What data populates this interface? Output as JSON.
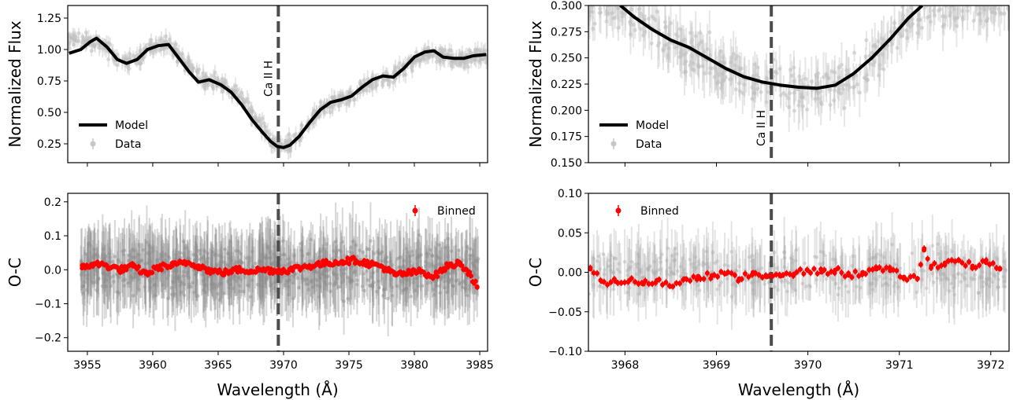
{
  "chart_data": [
    {
      "id": "top-left",
      "type": "line",
      "ylabel": "Normalized Flux",
      "xlim": [
        3953.5,
        3985.6
      ],
      "ylim": [
        0.1,
        1.35
      ],
      "xticks": [
        3955,
        3960,
        3965,
        3970,
        3975,
        3980,
        3985
      ],
      "yticks": [
        0.25,
        0.5,
        0.75,
        1.0,
        1.25
      ],
      "ytick_labels": [
        "0.25",
        "0.50",
        "0.75",
        "1.00",
        "1.25"
      ],
      "show_xtick_labels": false,
      "marker": {
        "x": 3969.6,
        "label": "Ca II H"
      },
      "legend": {
        "position": "lower-left",
        "entries": [
          {
            "label": "Model",
            "style": "line",
            "color": "#000000"
          },
          {
            "label": "Data",
            "style": "errorpoint",
            "color": "#c7c7c7"
          }
        ]
      },
      "series": [
        {
          "name": "Model",
          "color": "#000000",
          "x": [
            3953.6,
            3954.5,
            3955.2,
            3955.7,
            3956.5,
            3957.3,
            3958.0,
            3958.8,
            3959.6,
            3960.4,
            3961.2,
            3962.0,
            3962.8,
            3963.5,
            3964.3,
            3965.2,
            3966.0,
            3966.8,
            3967.6,
            3968.4,
            3969.0,
            3969.5,
            3970.0,
            3970.5,
            3971.2,
            3972.0,
            3972.8,
            3973.6,
            3974.4,
            3975.2,
            3976.0,
            3976.8,
            3977.6,
            3978.4,
            3979.2,
            3980.0,
            3980.8,
            3981.5,
            3982.2,
            3983.0,
            3983.8,
            3984.5,
            3985.5
          ],
          "y": [
            0.97,
            1.0,
            1.06,
            1.09,
            1.02,
            0.92,
            0.89,
            0.92,
            1.0,
            1.03,
            1.04,
            0.93,
            0.82,
            0.74,
            0.76,
            0.72,
            0.66,
            0.56,
            0.44,
            0.34,
            0.27,
            0.23,
            0.22,
            0.24,
            0.31,
            0.42,
            0.52,
            0.58,
            0.6,
            0.63,
            0.7,
            0.76,
            0.79,
            0.78,
            0.85,
            0.94,
            0.98,
            0.99,
            0.94,
            0.93,
            0.93,
            0.95,
            0.96
          ]
        },
        {
          "name": "Data",
          "color": "#c7c7c7",
          "x": [
            3955.0,
            3956.0,
            3957.0,
            3958.0,
            3959.0,
            3960.0,
            3961.0,
            3962.0,
            3963.0,
            3964.0,
            3965.0,
            3966.0,
            3967.0,
            3968.0,
            3969.0,
            3970.0,
            3971.0,
            3972.0,
            3973.0,
            3974.0,
            3975.0,
            3976.0,
            3977.0,
            3978.0,
            3979.0,
            3980.0,
            3981.0,
            3982.0,
            3983.0,
            3984.0,
            3985.0
          ],
          "y": [
            1.07,
            1.05,
            0.95,
            0.89,
            0.93,
            1.02,
            1.04,
            0.96,
            0.82,
            0.75,
            0.74,
            0.68,
            0.58,
            0.43,
            0.28,
            0.22,
            0.29,
            0.42,
            0.55,
            0.59,
            0.61,
            0.69,
            0.77,
            0.78,
            0.83,
            0.92,
            0.98,
            0.96,
            0.93,
            0.92,
            0.95
          ],
          "error": 0.06
        }
      ]
    },
    {
      "id": "top-right",
      "type": "line",
      "ylabel": "Normalized Flux",
      "xlim": [
        3967.6,
        3972.2
      ],
      "ylim": [
        0.15,
        0.3
      ],
      "xticks": [
        3968,
        3969,
        3970,
        3971,
        3972
      ],
      "yticks": [
        0.15,
        0.175,
        0.2,
        0.225,
        0.25,
        0.275,
        0.3
      ],
      "ytick_labels": [
        "0.150",
        "0.175",
        "0.200",
        "0.225",
        "0.250",
        "0.275",
        "0.300"
      ],
      "show_xtick_labels": false,
      "marker": {
        "x": 3969.6,
        "label": "Ca II H"
      },
      "legend": {
        "position": "lower-left",
        "entries": [
          {
            "label": "Model",
            "style": "line",
            "color": "#000000"
          },
          {
            "label": "Data",
            "style": "errorpoint",
            "color": "#c7c7c7"
          }
        ]
      },
      "series": [
        {
          "name": "Model",
          "color": "#000000",
          "x": [
            3967.95,
            3968.1,
            3968.3,
            3968.5,
            3968.7,
            3968.9,
            3969.1,
            3969.3,
            3969.5,
            3969.7,
            3969.9,
            3970.1,
            3970.3,
            3970.5,
            3970.7,
            3970.9,
            3971.1,
            3971.25
          ],
          "y": [
            0.3,
            0.289,
            0.277,
            0.267,
            0.26,
            0.25,
            0.24,
            0.232,
            0.227,
            0.224,
            0.222,
            0.221,
            0.224,
            0.235,
            0.25,
            0.268,
            0.288,
            0.3
          ]
        },
        {
          "name": "Data",
          "color": "#c7c7c7",
          "x": [
            3967.9,
            3968.1,
            3968.3,
            3968.5,
            3968.7,
            3968.9,
            3969.1,
            3969.3,
            3969.5,
            3969.7,
            3969.9,
            3970.1,
            3970.3,
            3970.5,
            3970.7,
            3970.9,
            3971.1,
            3971.3
          ],
          "y": [
            0.3,
            0.29,
            0.278,
            0.266,
            0.258,
            0.248,
            0.238,
            0.231,
            0.226,
            0.223,
            0.22,
            0.219,
            0.223,
            0.232,
            0.249,
            0.266,
            0.285,
            0.3
          ],
          "error": 0.02
        }
      ]
    },
    {
      "id": "bottom-left",
      "type": "scatter",
      "ylabel": "O-C",
      "xlabel": "Wavelength (Å)",
      "xlim": [
        3953.5,
        3985.6
      ],
      "ylim": [
        -0.24,
        0.225
      ],
      "xticks": [
        3955,
        3960,
        3965,
        3970,
        3975,
        3980,
        3985
      ],
      "yticks": [
        -0.2,
        -0.1,
        0.0,
        0.1,
        0.2
      ],
      "ytick_labels": [
        "−0.2",
        "−0.1",
        "0.0",
        "0.1",
        "0.2"
      ],
      "show_xtick_labels": true,
      "marker": {
        "x": 3969.6
      },
      "residual_band": {
        "x": [
          3954.5,
          3984.9
        ],
        "half_width": 0.08
      },
      "legend": {
        "position": "upper-right",
        "entries": [
          {
            "label": "Binned",
            "style": "errorpoint",
            "color": "#ff0000"
          }
        ]
      },
      "series": [
        {
          "name": "Binned",
          "color": "#ff0000",
          "x": [
            3954.6,
            3955.5,
            3956.5,
            3957.5,
            3958.5,
            3959.5,
            3960.5,
            3961.5,
            3962.5,
            3963.5,
            3964.5,
            3965.5,
            3966.5,
            3967.5,
            3968.5,
            3969.5,
            3970.5,
            3971.5,
            3972.5,
            3973.5,
            3974.5,
            3975.5,
            3976.5,
            3977.5,
            3978.5,
            3979.5,
            3980.5,
            3981.5,
            3982.5,
            3983.5,
            3984.2,
            3984.8
          ],
          "y": [
            0.005,
            0.018,
            0.012,
            0.0,
            0.01,
            -0.012,
            0.008,
            0.012,
            0.022,
            0.012,
            -0.005,
            -0.008,
            0.0,
            -0.003,
            0.0,
            -0.003,
            0.0,
            0.008,
            0.015,
            0.02,
            0.025,
            0.028,
            0.018,
            0.01,
            -0.015,
            -0.01,
            -0.005,
            -0.02,
            0.01,
            0.02,
            -0.01,
            -0.05
          ]
        }
      ]
    },
    {
      "id": "bottom-right",
      "type": "scatter",
      "ylabel": "O-C",
      "xlabel": "Wavelength (Å)",
      "xlim": [
        3967.6,
        3972.2
      ],
      "ylim": [
        -0.1,
        0.1
      ],
      "xticks": [
        3968,
        3969,
        3970,
        3971,
        3972
      ],
      "yticks": [
        -0.1,
        -0.05,
        0.0,
        0.05,
        0.1
      ],
      "ytick_labels": [
        "−0.10",
        "−0.05",
        "0.00",
        "0.05",
        "0.10"
      ],
      "show_xtick_labels": true,
      "marker": {
        "x": 3969.6
      },
      "residual_band": {
        "x": [
          3967.6,
          3972.2
        ],
        "half_width": 0.03
      },
      "legend": {
        "position": "upper-left",
        "entries": [
          {
            "label": "Binned",
            "style": "errorpoint",
            "color": "#ff0000"
          }
        ]
      },
      "series": [
        {
          "name": "Binned",
          "color": "#ff0000",
          "x": [
            3967.62,
            3967.75,
            3967.9,
            3968.05,
            3968.2,
            3968.35,
            3968.5,
            3968.65,
            3968.8,
            3968.95,
            3969.1,
            3969.25,
            3969.4,
            3969.55,
            3969.7,
            3969.85,
            3970.0,
            3970.15,
            3970.3,
            3970.45,
            3970.6,
            3970.75,
            3970.9,
            3971.05,
            3971.2,
            3971.27,
            3971.35,
            3971.5,
            3971.65,
            3971.8,
            3971.95,
            3972.1
          ],
          "y": [
            0.004,
            -0.012,
            -0.012,
            -0.01,
            -0.015,
            -0.01,
            -0.018,
            -0.008,
            -0.005,
            -0.004,
            -0.002,
            -0.008,
            0.0,
            -0.006,
            -0.005,
            -0.002,
            0.002,
            0.0,
            0.003,
            -0.004,
            0.0,
            0.004,
            0.002,
            -0.006,
            -0.008,
            0.028,
            0.008,
            0.012,
            0.015,
            0.008,
            0.012,
            0.004
          ]
        }
      ]
    }
  ]
}
